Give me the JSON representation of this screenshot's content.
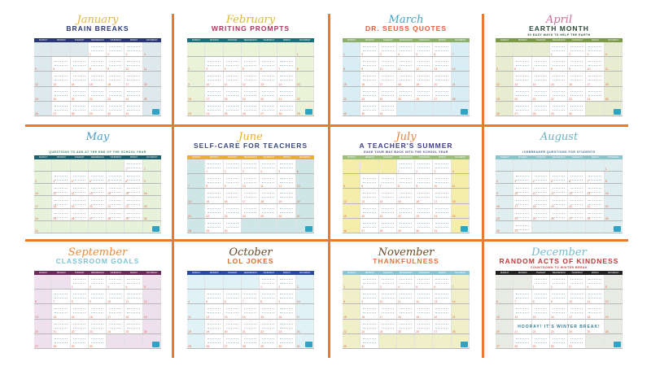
{
  "weekdays": [
    "SUNDAY",
    "MONDAY",
    "TUESDAY",
    "WEDNESDAY",
    "THURSDAY",
    "FRIDAY",
    "SATURDAY"
  ],
  "months": [
    {
      "title": "January",
      "subtitle": "BRAIN BREAKS",
      "tagline": "",
      "start": 3,
      "days": 31,
      "colors": {
        "title": "#e3b64a",
        "subtitle": "#2a3577",
        "header": "#2a3577",
        "side": "#dde9ec"
      }
    },
    {
      "title": "February",
      "subtitle": "WRITING PROMPTS",
      "tagline": "",
      "start": 6,
      "days": 29,
      "colors": {
        "title": "#d9b83e",
        "subtitle": "#b0335a",
        "header": "#1b6f7a",
        "side": "#eaf3d8"
      }
    },
    {
      "title": "March",
      "subtitle": "DR. SEUSS QUOTES",
      "tagline": "",
      "start": 0,
      "days": 31,
      "colors": {
        "title": "#4aa3c0",
        "subtitle": "#e65c3a",
        "header": "#8bb06a",
        "side": "#d8eef4"
      }
    },
    {
      "title": "April",
      "subtitle": "EARTH MONTH",
      "tagline": "50 EASY WAYS TO HELP THE EARTH",
      "start": 3,
      "days": 30,
      "colors": {
        "title": "#c9709a",
        "subtitle": "#2f4a3a",
        "header": "#7a9a4a",
        "side": "#e8ecd0"
      }
    },
    {
      "title": "May",
      "subtitle": "",
      "tagline": "QUESTIONS TO ASK AT THE END OF THE SCHOOL YEAR",
      "start": 5,
      "days": 31,
      "colors": {
        "title": "#4a9cc4",
        "subtitle": "#2f7a5a",
        "header": "#1c5f6e",
        "side": "#e6f2da"
      }
    },
    {
      "title": "June",
      "subtitle": "SELF-CARE FOR TEACHERS",
      "tagline": "",
      "start": 1,
      "days": 30,
      "colors": {
        "title": "#e8b030",
        "subtitle": "#3a4a7a",
        "header": "#e8b030",
        "side": "#cfe6e6"
      }
    },
    {
      "title": "July",
      "subtitle": "A TEACHER'S SUMMER",
      "tagline": "EASE YOUR WAY BACK INTO THE SCHOOL YEAR",
      "start": 3,
      "days": 31,
      "colors": {
        "title": "#f08040",
        "subtitle": "#403e8a",
        "header": "#9bbf7a",
        "side": "#f4eeaa"
      }
    },
    {
      "title": "August",
      "subtitle": "",
      "tagline": "ICEBREAKER QUESTIONS FOR STUDENTS",
      "start": 6,
      "days": 31,
      "colors": {
        "title": "#6ab0c0",
        "subtitle": "#3a6a8a",
        "header": "#8cc4cc",
        "side": "#e0eef0"
      }
    },
    {
      "title": "September",
      "subtitle": "CLASSROOM GOALS",
      "tagline": "",
      "start": 2,
      "days": 30,
      "colors": {
        "title": "#f08a3a",
        "subtitle": "#7cc4d4",
        "header": "#6a2a5a",
        "side": "#efe0ee"
      }
    },
    {
      "title": "October",
      "subtitle": "LOL JOKES",
      "tagline": "",
      "start": 4,
      "days": 31,
      "colors": {
        "title": "#6a4a2a",
        "subtitle": "#e66a2a",
        "header": "#2a4a9a",
        "side": "#e0f2f6"
      }
    },
    {
      "title": "November",
      "subtitle": "THANKFULNESS",
      "tagline": "",
      "start": 0,
      "days": 30,
      "colors": {
        "title": "#6a4a2a",
        "subtitle": "#e8703a",
        "header": "#8cc4d4",
        "side": "#f0f0c8"
      }
    },
    {
      "title": "December",
      "subtitle": "RANDOM ACTS OF KINDNESS",
      "tagline": "COUNTDOWN TO WINTER BREAK",
      "banner": "HOORAY! IT'S WINTER BREAK!",
      "start": 2,
      "days": 31,
      "colors": {
        "title": "#7ab8cc",
        "subtitle": "#c03a3a",
        "header": "#222222",
        "side": "#e8eae4"
      }
    }
  ]
}
